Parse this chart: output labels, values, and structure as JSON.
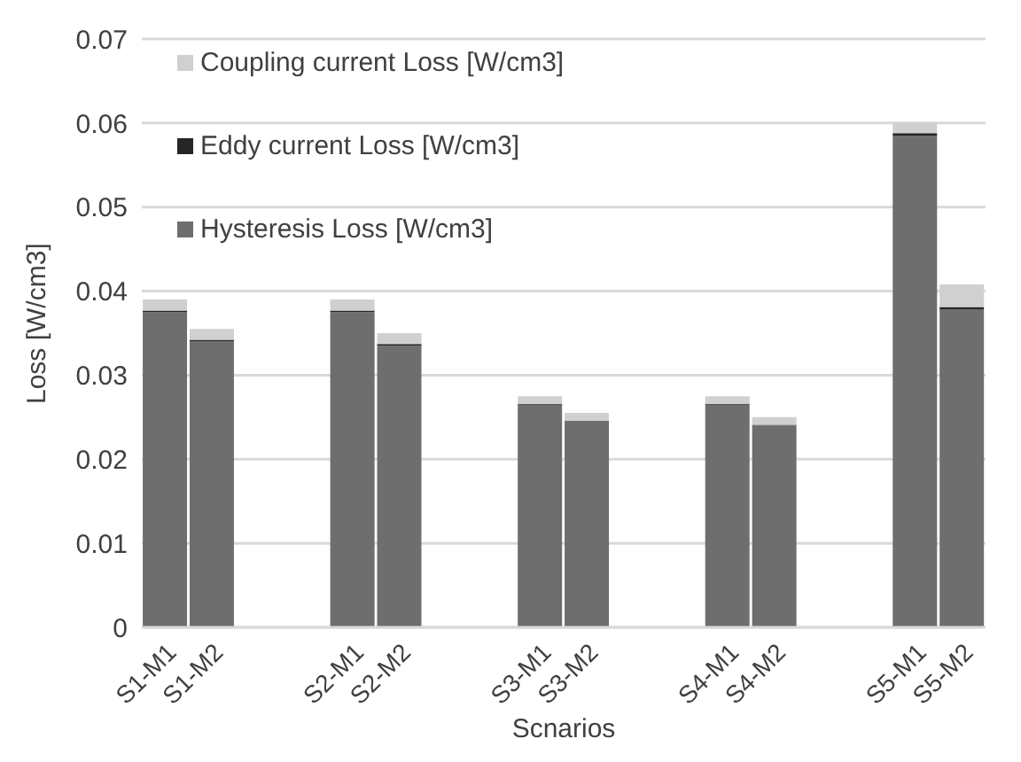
{
  "chart_data": {
    "type": "bar",
    "stacked": true,
    "xlabel": "Scnarios",
    "ylabel": "Loss [W/cm3]",
    "categories": [
      "S1-M1",
      "S1-M2",
      null,
      null,
      "S2-M1",
      "S2-M2",
      null,
      null,
      "S3-M1",
      "S3-M2",
      null,
      null,
      "S4-M1",
      "S4-M2",
      null,
      null,
      "S5-M1",
      "S5-M2"
    ],
    "series": [
      {
        "name": "Hysteresis Loss [W/cm3]",
        "color": "#6e6e6e",
        "values": [
          0.0375,
          0.034,
          null,
          null,
          0.0375,
          0.0335,
          null,
          null,
          0.0265,
          0.0245,
          null,
          null,
          0.0265,
          0.024,
          null,
          null,
          0.0585,
          0.0378
        ]
      },
      {
        "name": "Eddy current Loss [W/cm3]",
        "color": "#262626",
        "values": [
          0.0002,
          0.0002,
          null,
          null,
          0.0002,
          0.0002,
          null,
          null,
          0.0001,
          0.0001,
          null,
          null,
          0.0001,
          0.0001,
          null,
          null,
          0.0003,
          0.0003
        ]
      },
      {
        "name": "Coupling current Loss [W/cm3]",
        "color": "#d0d0d0",
        "values": [
          0.0013,
          0.0013,
          null,
          null,
          0.0013,
          0.0013,
          null,
          null,
          0.0009,
          0.0009,
          null,
          null,
          0.0009,
          0.0009,
          null,
          null,
          0.0012,
          0.0027
        ]
      }
    ],
    "ylim": [
      0,
      0.07
    ],
    "yticks": [
      0,
      0.01,
      0.02,
      0.03,
      0.04,
      0.05,
      0.06,
      0.07
    ],
    "grid": "y",
    "legend": "top left"
  }
}
